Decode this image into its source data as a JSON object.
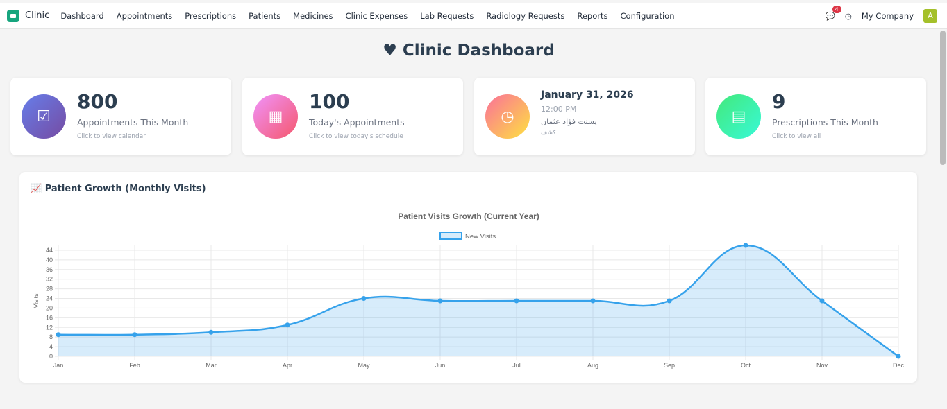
{
  "nav": {
    "app": "Clinic",
    "items": [
      "Dashboard",
      "Appointments",
      "Prescriptions",
      "Patients",
      "Medicines",
      "Clinic Expenses",
      "Lab Requests",
      "Radiology Requests",
      "Reports",
      "Configuration"
    ],
    "messages_count": "4",
    "company": "My Company",
    "avatar": "A"
  },
  "title": "Clinic Dashboard",
  "cards": [
    {
      "value": "800",
      "label": "Appointments This Month",
      "hint": "Click to view calendar",
      "icon": "calendar-check-icon"
    },
    {
      "value": "100",
      "label": "Today's Appointments",
      "hint": "Click to view today's schedule",
      "icon": "calendar-icon"
    },
    {
      "date": "January 31, 2026",
      "time": "12:00 PM",
      "patient": "يسنت فؤاد عثمان",
      "type": "كشف",
      "icon": "clock-icon"
    },
    {
      "value": "9",
      "label": "Prescriptions This Month",
      "hint": "Click to view all",
      "icon": "file-icon"
    }
  ],
  "panel": {
    "title": "Patient Growth (Monthly Visits)"
  },
  "chart_data": {
    "type": "line",
    "title": "Patient Visits Growth (Current Year)",
    "ylabel": "Visits",
    "xlabel": "",
    "categories": [
      "Jan",
      "Feb",
      "Mar",
      "Apr",
      "May",
      "Jun",
      "Jul",
      "Aug",
      "Sep",
      "Oct",
      "Nov",
      "Dec"
    ],
    "series": [
      {
        "name": "New Visits",
        "values": [
          9,
          9,
          10,
          13,
          24,
          23,
          23,
          23,
          23,
          46,
          23,
          0
        ]
      }
    ],
    "ylim": [
      0,
      46
    ],
    "yticks": [
      0,
      4,
      8,
      12,
      16,
      20,
      24,
      28,
      32,
      36,
      40,
      44
    ],
    "grid": true,
    "legend": "top",
    "fill": true,
    "color": "#36a2eb"
  }
}
